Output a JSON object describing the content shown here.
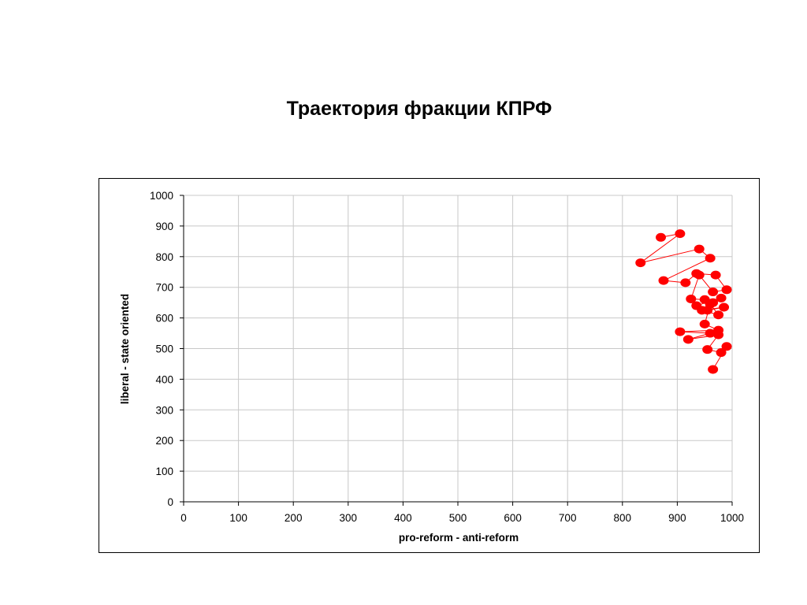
{
  "slide": {
    "title": "Траектория фракции КПРФ"
  },
  "chart_data": {
    "type": "scatter",
    "title": "Траектория фракции КПРФ",
    "xlabel": "pro-reform - anti-reform",
    "ylabel": "liberal - state oriented",
    "xlim": [
      0,
      1000
    ],
    "ylim": [
      0,
      1000
    ],
    "xticks": [
      0,
      100,
      200,
      300,
      400,
      500,
      600,
      700,
      800,
      900,
      1000
    ],
    "yticks": [
      0,
      100,
      200,
      300,
      400,
      500,
      600,
      700,
      800,
      900,
      1000
    ],
    "grid": true,
    "legend": "none",
    "connected": true,
    "color": "#ff0000",
    "series": [
      {
        "points": [
          [
            870,
            863
          ],
          [
            905,
            875
          ],
          [
            833,
            780
          ],
          [
            940,
            825
          ],
          [
            960,
            795
          ],
          [
            875,
            722
          ],
          [
            915,
            715
          ],
          [
            935,
            745
          ],
          [
            970,
            740
          ],
          [
            990,
            692
          ],
          [
            965,
            685
          ],
          [
            940,
            740
          ],
          [
            925,
            662
          ],
          [
            950,
            660
          ],
          [
            965,
            650
          ],
          [
            980,
            665
          ],
          [
            935,
            640
          ],
          [
            955,
            625
          ],
          [
            985,
            635
          ],
          [
            945,
            625
          ],
          [
            975,
            610
          ],
          [
            960,
            645
          ],
          [
            950,
            580
          ],
          [
            975,
            560
          ],
          [
            905,
            555
          ],
          [
            960,
            550
          ],
          [
            920,
            530
          ],
          [
            975,
            545
          ],
          [
            955,
            497
          ],
          [
            980,
            487
          ],
          [
            990,
            507
          ],
          [
            965,
            432
          ]
        ]
      }
    ]
  }
}
